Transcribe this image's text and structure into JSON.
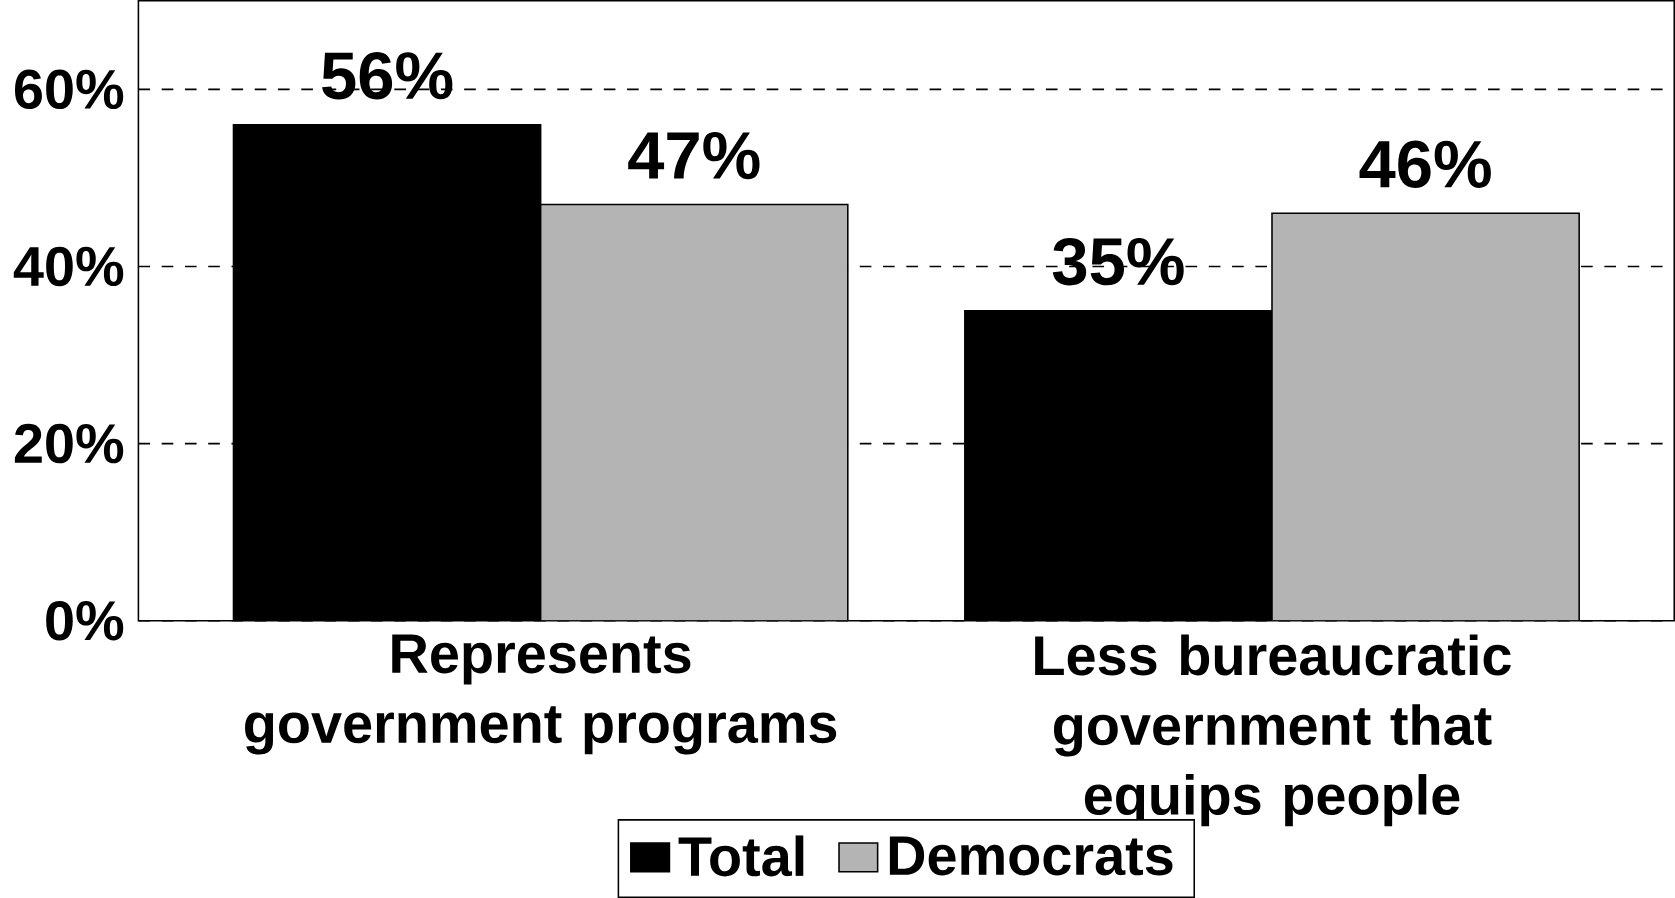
{
  "chart_data": {
    "type": "bar",
    "categories": [
      "Represents government programs",
      "Less bureaucratic government that equips people"
    ],
    "series": [
      {
        "name": "Total",
        "color": "#000000",
        "values": [
          56,
          35
        ],
        "value_labels": [
          "56%",
          "35%"
        ]
      },
      {
        "name": "Democrats",
        "color": "#b4b4b4",
        "values": [
          47,
          46
        ],
        "value_labels": [
          "47%",
          "46%"
        ]
      }
    ],
    "ylim": [
      0,
      70
    ],
    "yticks": [
      {
        "value": 0,
        "label": "0%"
      },
      {
        "value": 20,
        "label": "20%"
      },
      {
        "value": 40,
        "label": "40%"
      },
      {
        "value": 60,
        "label": "60%"
      }
    ],
    "grid": "y",
    "legend": "bottom"
  }
}
